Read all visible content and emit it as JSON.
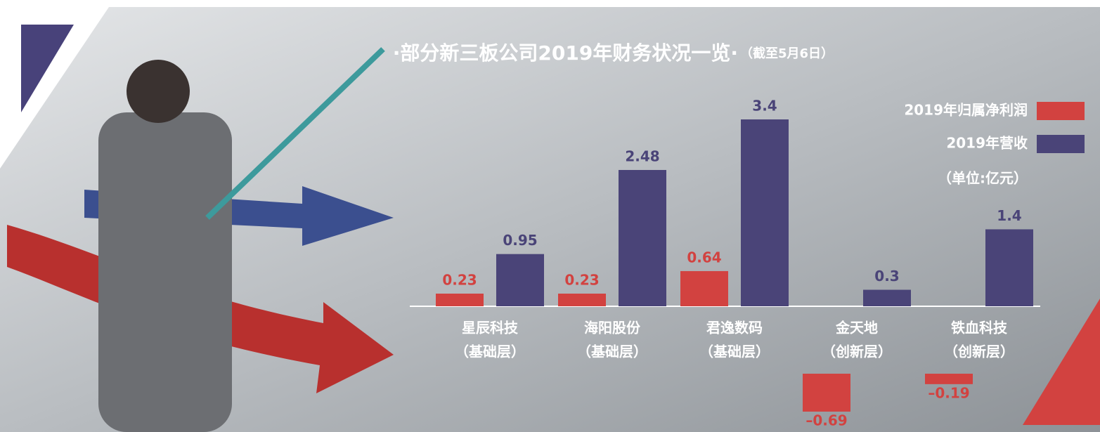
{
  "chart_data": {
    "type": "bar",
    "title": "·部分新三板公司2019年财务状况一览·",
    "subtitle": "（截至5月6日）",
    "unit": "（单位:亿元）",
    "categories": [
      "星辰科技",
      "海阳股份",
      "君逸数码",
      "金天地",
      "铁血科技"
    ],
    "category_notes": [
      "（基础层）",
      "（基础层）",
      "（基础层）",
      "（创新层）",
      "（创新层）"
    ],
    "series": [
      {
        "name": "2019年归属净利润",
        "color": "#d24240",
        "values": [
          0.23,
          0.23,
          0.64,
          -0.69,
          -0.19
        ],
        "value_labels": [
          "0.23",
          "0.23",
          "0.64",
          "–0.69",
          "–0.19"
        ]
      },
      {
        "name": "2019年营收",
        "color": "#4a4478",
        "values": [
          0.95,
          2.48,
          3.4,
          0.3,
          1.4
        ]
      }
    ],
    "ylim": [
      0,
      3.4
    ]
  }
}
